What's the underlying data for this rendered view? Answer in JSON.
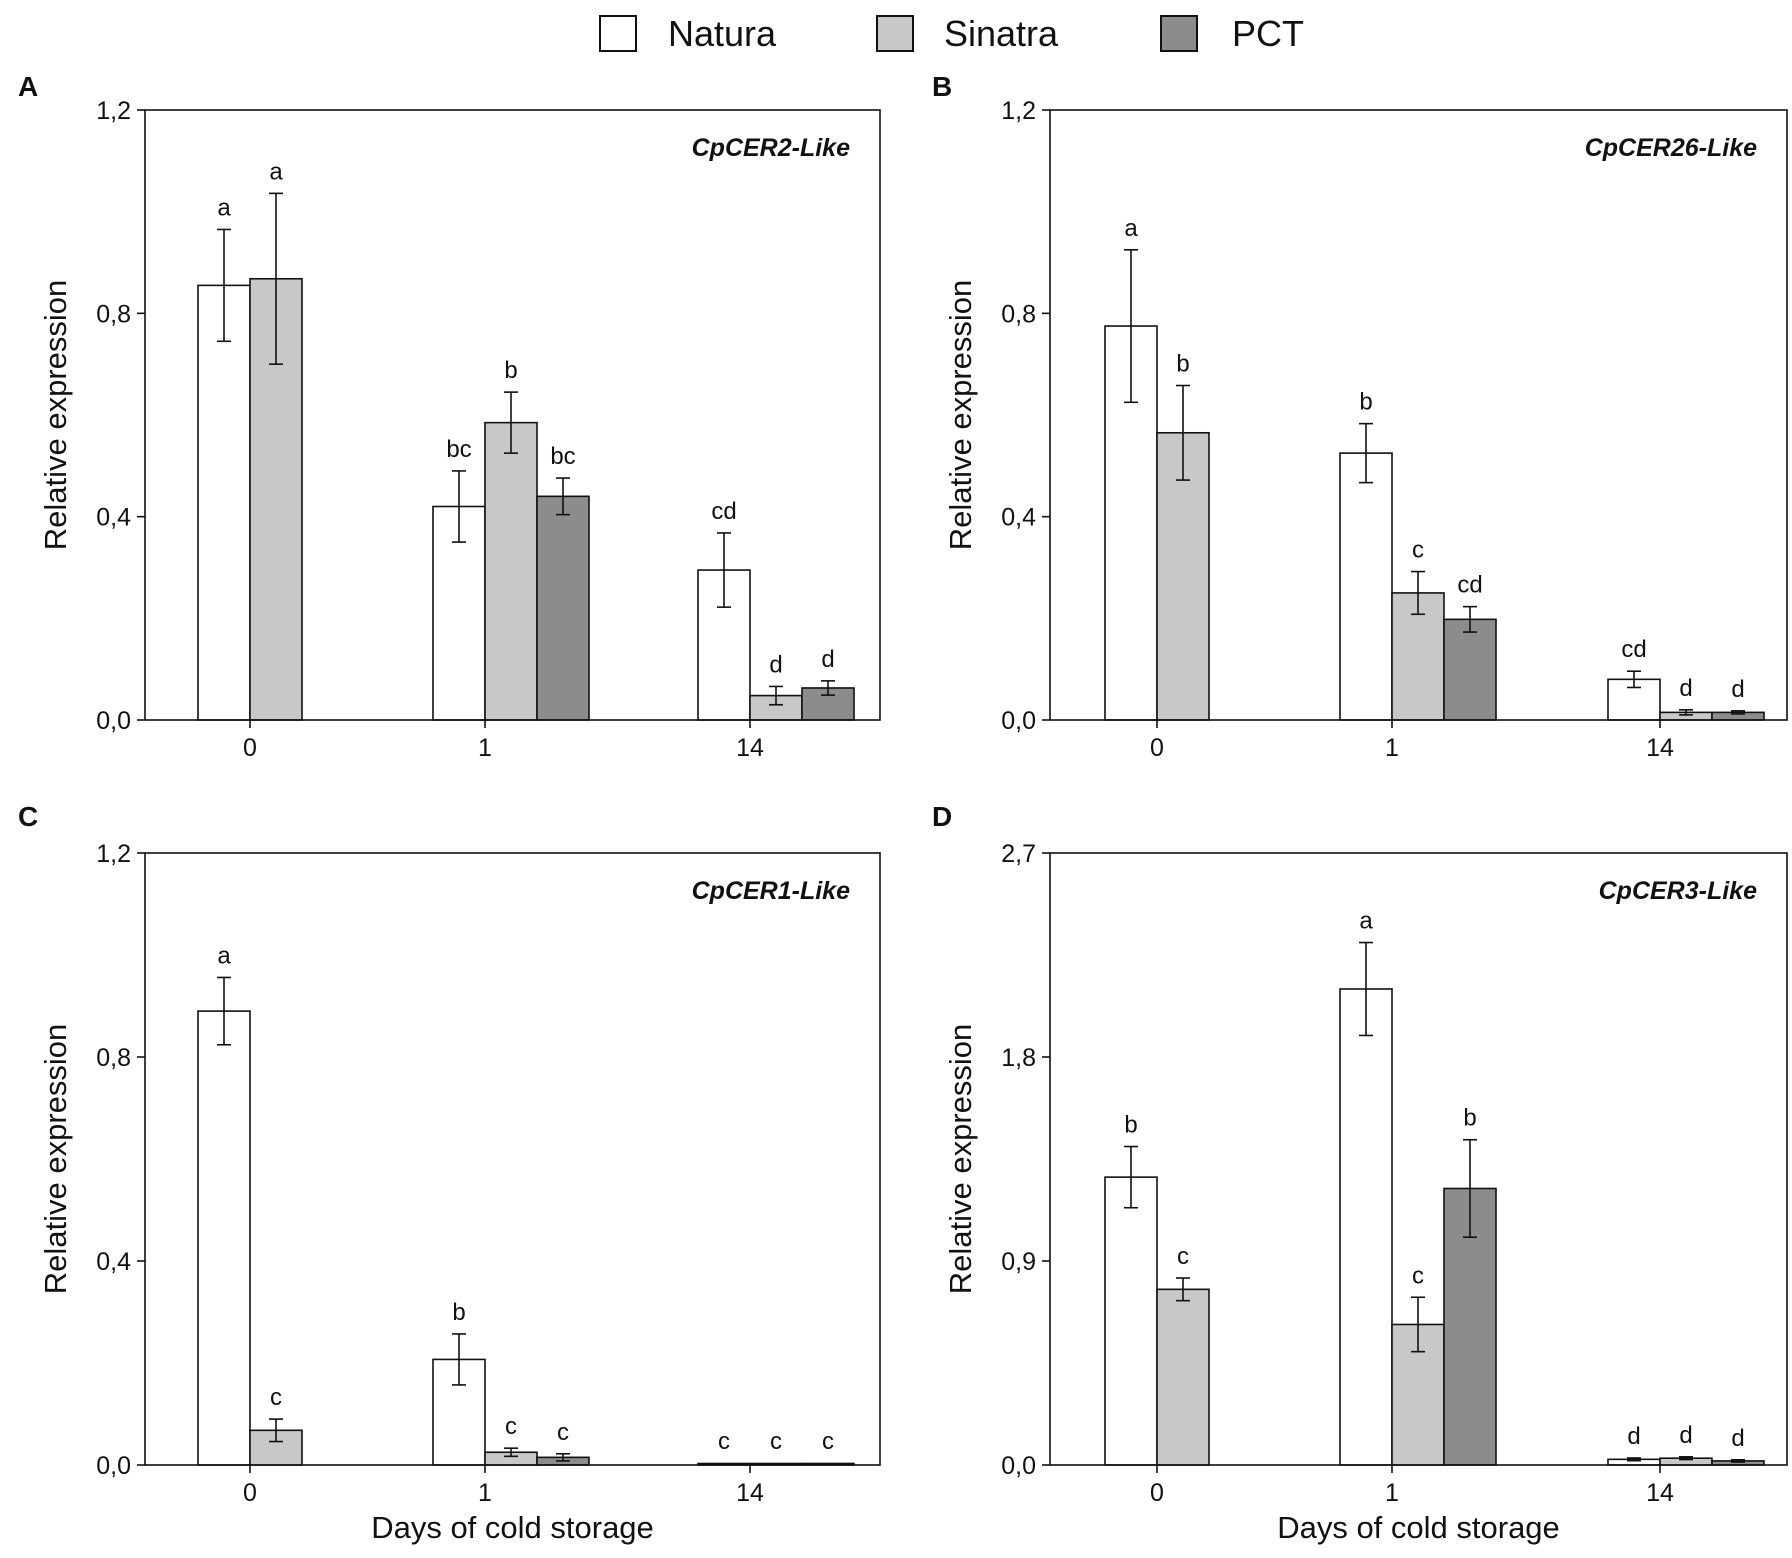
{
  "legend": {
    "position": "top-center",
    "items": [
      {
        "name": "Natura",
        "color": "#ffffff"
      },
      {
        "name": "Sinatra",
        "color": "#c8c8c8"
      },
      {
        "name": "PCT",
        "color": "#8c8c8c"
      }
    ]
  },
  "chart_data": [
    {
      "type": "bar",
      "panel": "A",
      "gene": "CpCER2-Like",
      "xlabel": "",
      "ylabel": "Relative expression",
      "ylim": [
        0,
        1.2
      ],
      "yticks": [
        "0,0",
        "0,4",
        "0,8",
        "1,2"
      ],
      "ytick_values": [
        0,
        0.4,
        0.8,
        1.2
      ],
      "categories": [
        "0",
        "1",
        "14"
      ],
      "series": [
        {
          "name": "Natura",
          "values": [
            0.855,
            0.42,
            0.295
          ],
          "errors": [
            0.11,
            0.07,
            0.073
          ],
          "letters": [
            "a",
            "bc",
            "cd"
          ]
        },
        {
          "name": "Sinatra",
          "values": [
            0.868,
            0.585,
            0.048
          ],
          "errors": [
            0.168,
            0.06,
            0.018
          ],
          "letters": [
            "a",
            "b",
            "d"
          ]
        },
        {
          "name": "PCT",
          "values": [
            null,
            0.44,
            0.063
          ],
          "errors": [
            null,
            0.036,
            0.014
          ],
          "letters": [
            null,
            "bc",
            "d"
          ]
        }
      ]
    },
    {
      "type": "bar",
      "panel": "B",
      "gene": "CpCER26-Like",
      "xlabel": "",
      "ylabel": "Relative expression",
      "ylim": [
        0,
        1.2
      ],
      "yticks": [
        "0,0",
        "0,4",
        "0,8",
        "1,2"
      ],
      "ytick_values": [
        0,
        0.4,
        0.8,
        1.2
      ],
      "categories": [
        "0",
        "1",
        "14"
      ],
      "series": [
        {
          "name": "Natura",
          "values": [
            0.775,
            0.525,
            0.08
          ],
          "errors": [
            0.15,
            0.058,
            0.016
          ],
          "letters": [
            "a",
            "b",
            "cd"
          ]
        },
        {
          "name": "Sinatra",
          "values": [
            0.565,
            0.25,
            0.015
          ],
          "errors": [
            0.093,
            0.042,
            0.005
          ],
          "letters": [
            "b",
            "c",
            "d"
          ]
        },
        {
          "name": "PCT",
          "values": [
            null,
            0.198,
            0.015
          ],
          "errors": [
            null,
            0.025,
            0.003
          ],
          "letters": [
            null,
            "cd",
            "d"
          ]
        }
      ]
    },
    {
      "type": "bar",
      "panel": "C",
      "gene": "CpCER1-Like",
      "xlabel": "Days of cold storage",
      "ylabel": "Relative expression",
      "ylim": [
        0,
        1.2
      ],
      "yticks": [
        "0,0",
        "0,4",
        "0,8",
        "1,2"
      ],
      "ytick_values": [
        0,
        0.4,
        0.8,
        1.2
      ],
      "categories": [
        "0",
        "1",
        "14"
      ],
      "series": [
        {
          "name": "Natura",
          "values": [
            0.89,
            0.207,
            0.002
          ],
          "errors": [
            0.066,
            0.05,
            0
          ],
          "letters": [
            "a",
            "b",
            "c"
          ]
        },
        {
          "name": "Sinatra",
          "values": [
            0.068,
            0.025,
            0.002
          ],
          "errors": [
            0.022,
            0.008,
            0
          ],
          "letters": [
            "c",
            "c",
            "c"
          ]
        },
        {
          "name": "PCT",
          "values": [
            null,
            0.015,
            0.003
          ],
          "errors": [
            null,
            0.007,
            0
          ],
          "letters": [
            null,
            "c",
            "c"
          ]
        }
      ]
    },
    {
      "type": "bar",
      "panel": "D",
      "gene": "CpCER3-Like",
      "xlabel": "Days of cold storage",
      "ylabel": "Relative expression",
      "ylim": [
        0,
        2.7
      ],
      "yticks": [
        "0,0",
        "0,9",
        "1,8",
        "2,7"
      ],
      "ytick_values": [
        0,
        0.9,
        1.8,
        2.7
      ],
      "categories": [
        "0",
        "1",
        "14"
      ],
      "series": [
        {
          "name": "Natura",
          "values": [
            1.27,
            2.1,
            0.025
          ],
          "errors": [
            0.135,
            0.205,
            0.006
          ],
          "letters": [
            "b",
            "a",
            "d"
          ]
        },
        {
          "name": "Sinatra",
          "values": [
            0.775,
            0.62,
            0.03
          ],
          "errors": [
            0.05,
            0.12,
            0.006
          ],
          "letters": [
            "c",
            "c",
            "d"
          ]
        },
        {
          "name": "PCT",
          "values": [
            null,
            1.22,
            0.018
          ],
          "errors": [
            null,
            0.215,
            0.005
          ],
          "letters": [
            null,
            "b",
            "d"
          ]
        }
      ]
    }
  ]
}
